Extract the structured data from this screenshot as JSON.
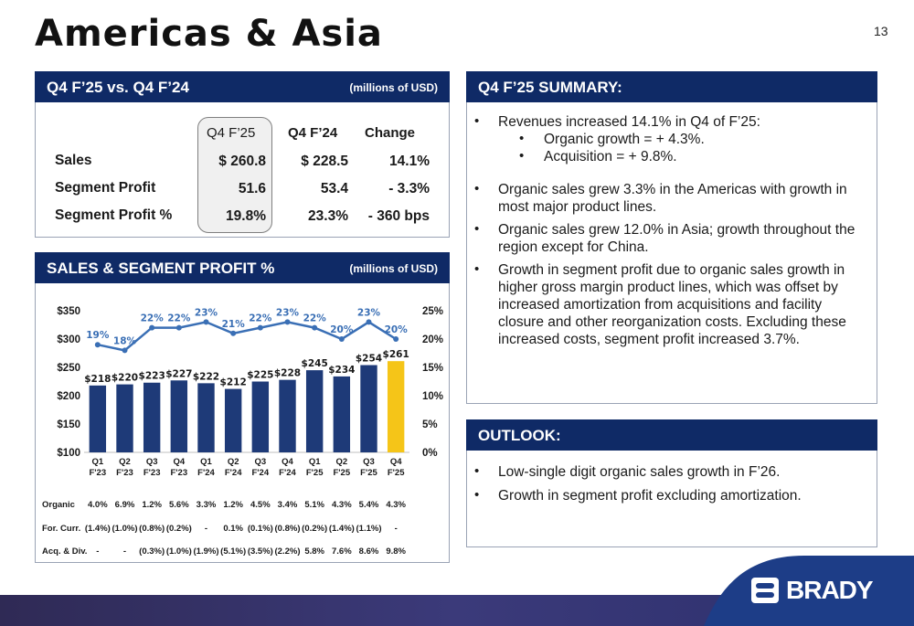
{
  "page": {
    "title": "Americas & Asia",
    "number": "13"
  },
  "comparison": {
    "heading": "Q4 F’25 vs. Q4 F’24",
    "unit": "(millions of USD)",
    "columns": [
      "Q4 F’25",
      "Q4 F’24",
      "Change"
    ],
    "rows": [
      {
        "label": "Sales",
        "q4f25": "$ 260.8",
        "q4f24": "$ 228.5",
        "change": "14.1%"
      },
      {
        "label": "Segment Profit",
        "q4f25": "51.6",
        "q4f24": "53.4",
        "change": "- 3.3%"
      },
      {
        "label": "Segment Profit %",
        "q4f25": "19.8%",
        "q4f24": "23.3%",
        "change": "- 360 bps"
      }
    ]
  },
  "sales_panel": {
    "heading": "SALES & SEGMENT PROFIT %",
    "unit": "(millions of USD)"
  },
  "summary": {
    "heading": "Q4 F’25 SUMMARY:",
    "bullets": {
      "b1": "Revenues increased 14.1% in Q4 of F’25:",
      "b1a": "Organic growth = + 4.3%.",
      "b1b": "Acquisition = + 9.8%.",
      "b2": "Organic sales grew 3.3% in the Americas with growth in most major product lines.",
      "b3": "Organic sales grew 12.0% in Asia; growth throughout the region except for China.",
      "b4": "Growth in segment profit due to organic sales growth in higher gross margin product lines, which was offset by increased amortization from acquisitions and facility closure and other reorganization costs. Excluding these increased costs, segment profit increased 3.7%."
    }
  },
  "outlook": {
    "heading": "OUTLOOK:",
    "b1": "Low-single digit organic sales growth in F’26.",
    "b2": "Growth in segment profit excluding amortization."
  },
  "growth_table": {
    "rows": [
      {
        "label": "Organic",
        "values": [
          "4.0%",
          "6.9%",
          "1.2%",
          "5.6%",
          "3.3%",
          "1.2%",
          "4.5%",
          "3.4%",
          "5.1%",
          "4.3%",
          "5.4%",
          "4.3%"
        ]
      },
      {
        "label": "For. Curr.",
        "values": [
          "(1.4%)",
          "(1.0%)",
          "(0.8%)",
          "(0.2%)",
          "-",
          "0.1%",
          "(0.1%)",
          "(0.8%)",
          "(0.2%)",
          "(1.4%)",
          "(1.1%)",
          "-"
        ]
      },
      {
        "label": "Acq. & Div.",
        "values": [
          "-",
          "-",
          "(0.3%)",
          "(1.0%)",
          "(1.9%)",
          "(5.1%)",
          "(3.5%)",
          "(2.2%)",
          "5.8%",
          "7.6%",
          "8.6%",
          "9.8%"
        ]
      }
    ]
  },
  "logo": {
    "text": "BRADY"
  },
  "colors": {
    "navy": "#0f2a66",
    "bar": "#1e3a78",
    "highlight": "#f5c518",
    "line": "#3a6fb5"
  },
  "chart_data": {
    "type": "bar",
    "categories": [
      [
        "Q1",
        "F'23"
      ],
      [
        "Q2",
        "F'23"
      ],
      [
        "Q3",
        "F'23"
      ],
      [
        "Q4",
        "F'23"
      ],
      [
        "Q1",
        "F'24"
      ],
      [
        "Q2",
        "F'24"
      ],
      [
        "Q3",
        "F'24"
      ],
      [
        "Q4",
        "F'24"
      ],
      [
        "Q1",
        "F'25"
      ],
      [
        "Q2",
        "F'25"
      ],
      [
        "Q3",
        "F'25"
      ],
      [
        "Q4",
        "F'25"
      ]
    ],
    "series": [
      {
        "values": [
          218,
          220,
          223,
          227,
          222,
          212,
          225,
          228,
          245,
          234,
          254,
          261
        ],
        "labels": [
          "$218",
          "$220",
          "$223",
          "$227",
          "$222",
          "$212",
          "$225",
          "$228",
          "$245",
          "$234",
          "$254",
          "$261"
        ]
      },
      {
        "values": [
          19,
          18,
          22,
          22,
          23,
          21,
          22,
          23,
          22,
          20,
          23,
          20
        ],
        "labels": [
          "19%",
          "18%",
          "22%",
          "22%",
          "23%",
          "21%",
          "22%",
          "23%",
          "22%",
          "20%",
          "23%",
          "20%"
        ]
      }
    ],
    "ylim": [
      100,
      350
    ],
    "yticks": [
      "$350",
      "$300",
      "$250",
      "$200",
      "$150",
      "$100"
    ],
    "y2lim": [
      0,
      25
    ],
    "y2ticks": [
      "25%",
      "20%",
      "15%",
      "10%",
      "5%",
      "0%"
    ],
    "highlight_index": 11
  }
}
